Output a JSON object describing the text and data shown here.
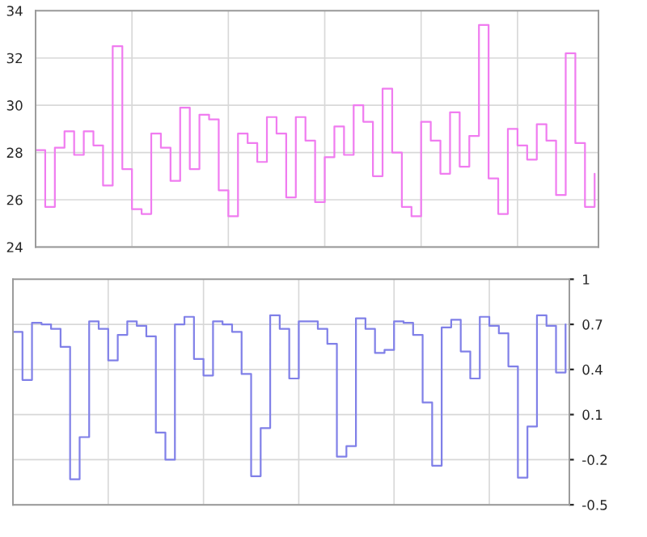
{
  "chart_data": [
    {
      "type": "step",
      "categories": [
        null,
        null,
        null,
        null,
        null,
        null,
        null,
        null,
        null,
        null,
        null,
        null,
        null,
        null,
        null,
        null,
        null,
        null,
        null,
        null,
        null,
        null,
        null,
        null,
        null,
        null,
        null,
        null,
        null,
        null,
        null,
        null,
        null,
        null,
        null,
        null,
        null,
        null,
        null,
        null,
        null,
        null,
        null,
        null,
        null,
        null,
        null,
        null,
        null,
        null,
        null,
        null,
        null,
        null,
        null,
        null,
        null,
        null,
        null
      ],
      "series": [
        {
          "color": "#f07cf0",
          "values": [
            28.1,
            25.7,
            28.2,
            28.9,
            27.9,
            28.9,
            28.3,
            26.6,
            32.5,
            27.3,
            25.6,
            25.4,
            28.8,
            28.2,
            26.8,
            29.9,
            27.3,
            29.6,
            29.4,
            26.4,
            25.3,
            28.8,
            28.4,
            27.6,
            29.5,
            28.8,
            26.1,
            29.5,
            28.5,
            25.9,
            27.8,
            29.1,
            27.9,
            30.0,
            29.3,
            27.0,
            30.7,
            28.0,
            25.7,
            25.3,
            29.3,
            28.5,
            27.1,
            29.7,
            27.4,
            28.7,
            33.4,
            26.9,
            25.4,
            29.0,
            28.3,
            27.7,
            29.2,
            28.5,
            26.2,
            32.2,
            28.4,
            25.7,
            27.1
          ]
        }
      ],
      "ylim": [
        24,
        34
      ],
      "yticks": [
        24,
        26,
        28,
        30,
        32,
        34
      ],
      "grid": true,
      "tick_labels": "y"
    },
    {
      "type": "step",
      "categories": [
        null,
        null,
        null,
        null,
        null,
        null,
        null,
        null,
        null,
        null,
        null,
        null,
        null,
        null,
        null,
        null,
        null,
        null,
        null,
        null,
        null,
        null,
        null,
        null,
        null,
        null,
        null,
        null,
        null,
        null,
        null,
        null,
        null,
        null,
        null,
        null,
        null,
        null,
        null,
        null,
        null,
        null,
        null,
        null,
        null,
        null,
        null,
        null,
        null,
        null,
        null,
        null,
        null,
        null,
        null,
        null,
        null,
        null,
        null
      ],
      "series": [
        {
          "color": "#8080e8",
          "values": [
            0.65,
            0.33,
            0.71,
            0.7,
            0.67,
            0.55,
            -0.33,
            -0.05,
            0.72,
            0.67,
            0.46,
            0.63,
            0.72,
            0.69,
            0.62,
            -0.02,
            -0.2,
            0.7,
            0.75,
            0.47,
            0.36,
            0.72,
            0.7,
            0.65,
            0.37,
            -0.31,
            0.01,
            0.76,
            0.67,
            0.34,
            0.72,
            0.72,
            0.67,
            0.57,
            -0.18,
            -0.11,
            0.74,
            0.67,
            0.51,
            0.53,
            0.72,
            0.71,
            0.63,
            0.18,
            -0.24,
            0.68,
            0.73,
            0.52,
            0.34,
            0.75,
            0.69,
            0.64,
            0.42,
            -0.32,
            0.02,
            0.76,
            0.69,
            0.38,
            0.7
          ]
        }
      ],
      "ylim": [
        -0.5,
        1
      ],
      "yticks": [
        -0.5,
        -0.2,
        0.1,
        0.4,
        0.7,
        1
      ],
      "grid": true,
      "tick_labels": "y"
    }
  ]
}
